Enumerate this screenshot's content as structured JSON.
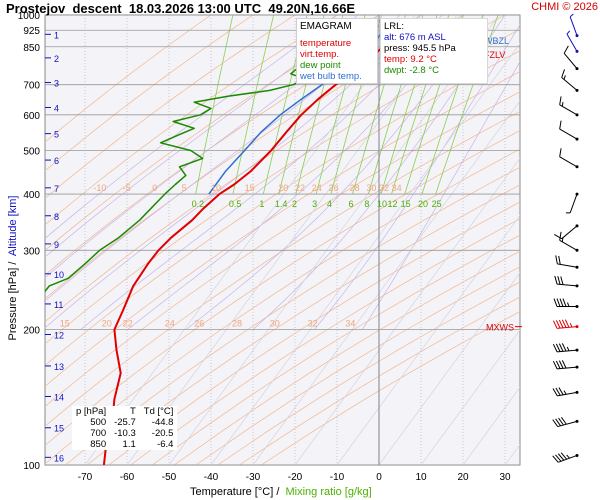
{
  "header": {
    "station": "Prostejov",
    "mode": "descent",
    "datetime": "18.03.2026 13:00 UTC",
    "coords": "49.20N,16.66E",
    "copyright": "CHMI © 2026"
  },
  "legend": {
    "title": "EMAGRAM",
    "items": [
      {
        "label": "temperature",
        "color": "#e00000"
      },
      {
        "label": "virt.temp.",
        "color": "#e00000"
      },
      {
        "label": "dew point",
        "color": "#1a8a00"
      },
      {
        "label": "wet bulb temp.",
        "color": "#2f6fd0"
      }
    ]
  },
  "lrl": {
    "title": "LRL:",
    "alt": "alt: 676 m ASL",
    "press": "press: 945.5 hPa",
    "temp": "temp: 9.2 °C",
    "dwpt": "dwpt: -2.8 °C"
  },
  "summary_table": {
    "headers": [
      "p [hPa]",
      "T",
      "Td [°C]"
    ],
    "rows": [
      [
        "500",
        "-25.7",
        "-44.8"
      ],
      [
        "700",
        "-10.3",
        "-20.5"
      ],
      [
        "850",
        "1.1",
        "-6.4"
      ]
    ]
  },
  "axes": {
    "xlabel_part1": "Temperature [°C] /",
    "xlabel_part2": "Mixing ratio [g/kg]",
    "ylabel_part1": "Pressure [hPa] /",
    "ylabel_part2": "Altitude [km]"
  },
  "chart_data": {
    "type": "line",
    "diagram": "emagram",
    "y_scale": "log-pressure",
    "ylim": [
      1000,
      100
    ],
    "xlim": [
      -80,
      40
    ],
    "x_ticks": [
      -70,
      -60,
      -50,
      -40,
      -30,
      -20,
      -10,
      0,
      10,
      20,
      30
    ],
    "pressure_ticks": [
      100,
      200,
      300,
      400,
      500,
      600,
      700,
      850,
      925,
      1000
    ],
    "altitude_ticks": [
      {
        "km": 1,
        "p": 906
      },
      {
        "km": 2,
        "p": 803
      },
      {
        "km": 3,
        "p": 708
      },
      {
        "km": 4,
        "p": 623
      },
      {
        "km": 5,
        "p": 545
      },
      {
        "km": 6,
        "p": 476
      },
      {
        "km": 7,
        "p": 413
      },
      {
        "km": 8,
        "p": 358
      },
      {
        "km": 9,
        "p": 310
      },
      {
        "km": 10,
        "p": 266
      },
      {
        "km": 11,
        "p": 228
      },
      {
        "km": 12,
        "p": 195
      },
      {
        "km": 13,
        "p": 166
      },
      {
        "km": 14,
        "p": 142
      },
      {
        "km": 15,
        "p": 121
      },
      {
        "km": 16,
        "p": 104
      }
    ],
    "isotherm_start": -70,
    "mixing_ratio_labels": [
      "0.2",
      "0.5",
      "1",
      "1.4",
      "2",
      "3",
      "4",
      "6",
      "8",
      "10",
      "12",
      "15",
      "20",
      "25"
    ],
    "mixing_ratio_values": [
      0.2,
      0.5,
      1,
      1.4,
      2,
      3,
      4,
      6,
      8,
      10,
      12,
      15,
      20,
      25
    ],
    "upper_label_row": {
      "p": 200,
      "labels": [
        "15",
        "20",
        "22",
        "24",
        "26",
        "28",
        "30",
        "32",
        "34"
      ],
      "t": [
        -76,
        -66,
        -61,
        -51,
        -44,
        -35,
        -26,
        -17,
        -8
      ]
    },
    "lower_label_row": {
      "p": 400,
      "labels": [
        "-10",
        "-5",
        "0",
        "5",
        "10",
        "15",
        "20",
        "22",
        "24",
        "26",
        "28",
        "30",
        "32",
        "34"
      ],
      "t": [
        -68,
        -61,
        -54,
        -47,
        -40,
        -32,
        -24,
        -20,
        -16,
        -12,
        -7,
        -3,
        0,
        3
      ]
    },
    "series": [
      {
        "name": "temperature",
        "color": "#e00000",
        "points": [
          {
            "p": 945.5,
            "t": 9.2
          },
          {
            "p": 925,
            "t": 6.5
          },
          {
            "p": 900,
            "t": 4.2
          },
          {
            "p": 850,
            "t": 1.1
          },
          {
            "p": 800,
            "t": -2.5
          },
          {
            "p": 750,
            "t": -6.5
          },
          {
            "p": 700,
            "t": -10.3
          },
          {
            "p": 650,
            "t": -14.5
          },
          {
            "p": 600,
            "t": -18.5
          },
          {
            "p": 550,
            "t": -22.0
          },
          {
            "p": 500,
            "t": -25.7
          },
          {
            "p": 450,
            "t": -30.5
          },
          {
            "p": 420,
            "t": -34.5
          },
          {
            "p": 400,
            "t": -38.0
          },
          {
            "p": 370,
            "t": -42.0
          },
          {
            "p": 350,
            "t": -44.5
          },
          {
            "p": 320,
            "t": -49.5
          },
          {
            "p": 300,
            "t": -52.5
          },
          {
            "p": 280,
            "t": -55.0
          },
          {
            "p": 250,
            "t": -58.5
          },
          {
            "p": 220,
            "t": -61.0
          },
          {
            "p": 200,
            "t": -63.0
          },
          {
            "p": 180,
            "t": -62.5
          },
          {
            "p": 160,
            "t": -61.5
          },
          {
            "p": 140,
            "t": -63.0
          },
          {
            "p": 125,
            "t": -63.5
          },
          {
            "p": 110,
            "t": -65.0
          },
          {
            "p": 100,
            "t": -65.5
          }
        ]
      },
      {
        "name": "dew point",
        "color": "#1a8a00",
        "points": [
          {
            "p": 945.5,
            "t": -2.8
          },
          {
            "p": 925,
            "t": -3.5
          },
          {
            "p": 900,
            "t": -4.5
          },
          {
            "p": 850,
            "t": -6.4
          },
          {
            "p": 800,
            "t": -11.0
          },
          {
            "p": 775,
            "t": -16.0
          },
          {
            "p": 760,
            "t": -19.5
          },
          {
            "p": 740,
            "t": -21.0
          },
          {
            "p": 720,
            "t": -17.5
          },
          {
            "p": 700,
            "t": -20.5
          },
          {
            "p": 680,
            "t": -26.0
          },
          {
            "p": 660,
            "t": -36.0
          },
          {
            "p": 640,
            "t": -44.0
          },
          {
            "p": 620,
            "t": -40.0
          },
          {
            "p": 600,
            "t": -42.5
          },
          {
            "p": 580,
            "t": -49.0
          },
          {
            "p": 560,
            "t": -44.0
          },
          {
            "p": 540,
            "t": -48.0
          },
          {
            "p": 520,
            "t": -52.0
          },
          {
            "p": 500,
            "t": -44.8
          },
          {
            "p": 480,
            "t": -42.0
          },
          {
            "p": 460,
            "t": -47.5
          },
          {
            "p": 440,
            "t": -46.0
          },
          {
            "p": 420,
            "t": -48.5
          },
          {
            "p": 400,
            "t": -51.0
          },
          {
            "p": 370,
            "t": -54.5
          },
          {
            "p": 350,
            "t": -57.0
          },
          {
            "p": 320,
            "t": -62.0
          },
          {
            "p": 300,
            "t": -66.5
          },
          {
            "p": 280,
            "t": -70.0
          },
          {
            "p": 260,
            "t": -74.0
          },
          {
            "p": 250,
            "t": -78.5
          },
          {
            "p": 240,
            "t": -80.0
          }
        ]
      },
      {
        "name": "wet bulb temp.",
        "color": "#2f6fd0",
        "points": [
          {
            "p": 945.5,
            "t": 3.0
          },
          {
            "p": 925,
            "t": 1.8
          },
          {
            "p": 900,
            "t": 0.2
          },
          {
            "p": 850,
            "t": -2.4
          },
          {
            "p": 800,
            "t": -5.8
          },
          {
            "p": 750,
            "t": -9.8
          },
          {
            "p": 700,
            "t": -13.6
          },
          {
            "p": 650,
            "t": -18.5
          },
          {
            "p": 600,
            "t": -23.5
          },
          {
            "p": 550,
            "t": -28.0
          },
          {
            "p": 500,
            "t": -32.0
          },
          {
            "p": 450,
            "t": -36.5
          },
          {
            "p": 400,
            "t": -40.5
          }
        ]
      }
    ],
    "levels": [
      {
        "label": "MXWS",
        "p": 203,
        "color": "#e00000"
      },
      {
        "label": "FZLV",
        "p": 820,
        "color": "#e00000"
      },
      {
        "label": "WBZL",
        "p": 880,
        "color": "#2f6fd0"
      }
    ],
    "wind_barbs": [
      {
        "p": 105,
        "dir": 250,
        "kt": 45
      },
      {
        "p": 125,
        "dir": 255,
        "kt": 40
      },
      {
        "p": 145,
        "dir": 260,
        "kt": 35
      },
      {
        "p": 165,
        "dir": 265,
        "kt": 40
      },
      {
        "p": 180,
        "dir": 265,
        "kt": 45
      },
      {
        "p": 203,
        "dir": 265,
        "kt": 55
      },
      {
        "p": 225,
        "dir": 270,
        "kt": 45
      },
      {
        "p": 250,
        "dir": 275,
        "kt": 30
      },
      {
        "p": 275,
        "dir": 280,
        "kt": 20
      },
      {
        "p": 300,
        "dir": 300,
        "kt": 15
      },
      {
        "p": 340,
        "dir": 230,
        "kt": 10
      },
      {
        "p": 400,
        "dir": 200,
        "kt": 5
      },
      {
        "p": 460,
        "dir": 300,
        "kt": 10
      },
      {
        "p": 530,
        "dir": 300,
        "kt": 10
      },
      {
        "p": 600,
        "dir": 300,
        "kt": 15
      },
      {
        "p": 680,
        "dir": 310,
        "kt": 15
      },
      {
        "p": 760,
        "dir": 320,
        "kt": 10
      },
      {
        "p": 830,
        "dir": 330,
        "kt": 5
      },
      {
        "p": 900,
        "dir": 340,
        "kt": 5
      }
    ]
  }
}
